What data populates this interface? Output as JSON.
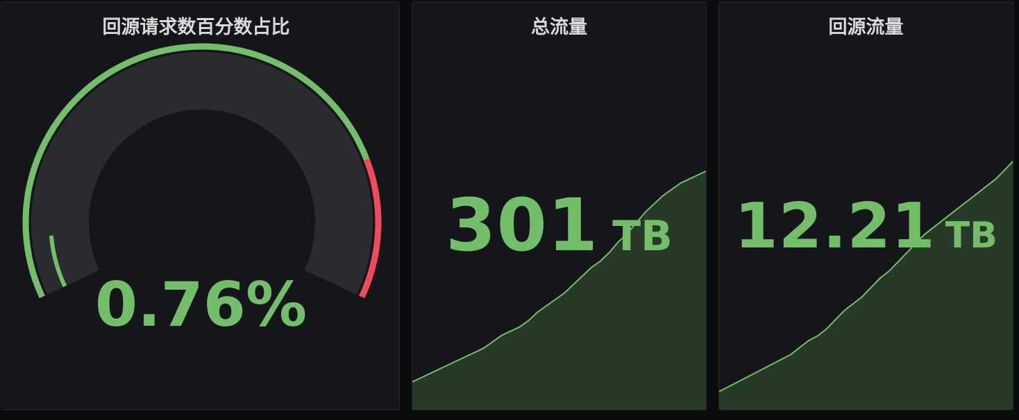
{
  "panels": [
    {
      "title": "回源请求数百分数占比",
      "type": "gauge",
      "value": 0.76,
      "display_value": "0.76%",
      "unit": "%",
      "min": 0,
      "max": 100,
      "thresholds": [
        {
          "value": 0,
          "color": "#73bf69"
        },
        {
          "value": 80,
          "color": "#f2495c"
        }
      ]
    },
    {
      "title": "总流量",
      "type": "stat",
      "value": "301",
      "unit": "TB",
      "color": "#73bf69"
    },
    {
      "title": "回源流量",
      "type": "stat",
      "value": "12.21",
      "unit": "TB",
      "color": "#73bf69"
    }
  ],
  "chart_data": [
    {
      "type": "area",
      "y": [
        0,
        2,
        4,
        6,
        8,
        10,
        12,
        14,
        16,
        19,
        22,
        24,
        26,
        29,
        33,
        36,
        39,
        42,
        46,
        50,
        54,
        57,
        61,
        66,
        70,
        75,
        80,
        84,
        88,
        91,
        94,
        96,
        98,
        100
      ],
      "color": "#73bf69",
      "fill": "#273a27"
    },
    {
      "type": "area",
      "y": [
        0,
        2,
        4,
        6,
        8,
        10,
        12,
        14,
        16,
        19,
        22,
        24,
        27,
        31,
        35,
        38,
        41,
        45,
        49,
        52,
        56,
        60,
        64,
        68,
        71,
        74,
        77,
        80,
        83,
        86,
        89,
        92,
        96,
        100
      ],
      "color": "#73bf69",
      "fill": "#273a27"
    }
  ]
}
